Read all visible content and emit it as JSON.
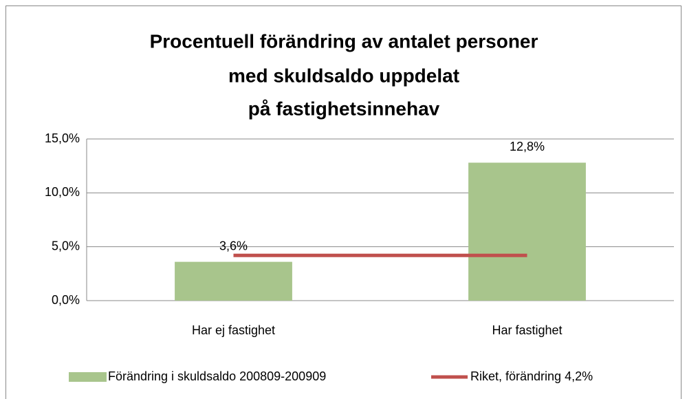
{
  "chart_data": {
    "type": "bar",
    "title": [
      "Procentuell förändring av antalet personer",
      "med skuldsaldo uppdelat",
      "på fastighetsinnehav"
    ],
    "categories": [
      "Har ej fastighet",
      "Har fastighet"
    ],
    "series": [
      {
        "name": "Förändring i skuldsaldo 200809-200909",
        "type": "bar",
        "color": "#a8c58c",
        "values": [
          3.6,
          12.8
        ],
        "value_labels": [
          "3,6%",
          "12,8%"
        ]
      },
      {
        "name": "Riket, förändring 4,2%",
        "type": "line",
        "color": "#c0504d",
        "values": [
          4.2,
          4.2
        ]
      }
    ],
    "ylim": [
      0,
      15
    ],
    "yticks": [
      {
        "value": 0,
        "label": "0,0%"
      },
      {
        "value": 5,
        "label": "5,0%"
      },
      {
        "value": 10,
        "label": "10,0%"
      },
      {
        "value": 15,
        "label": "15,0%"
      }
    ],
    "grid": true,
    "legend": "bottom"
  }
}
